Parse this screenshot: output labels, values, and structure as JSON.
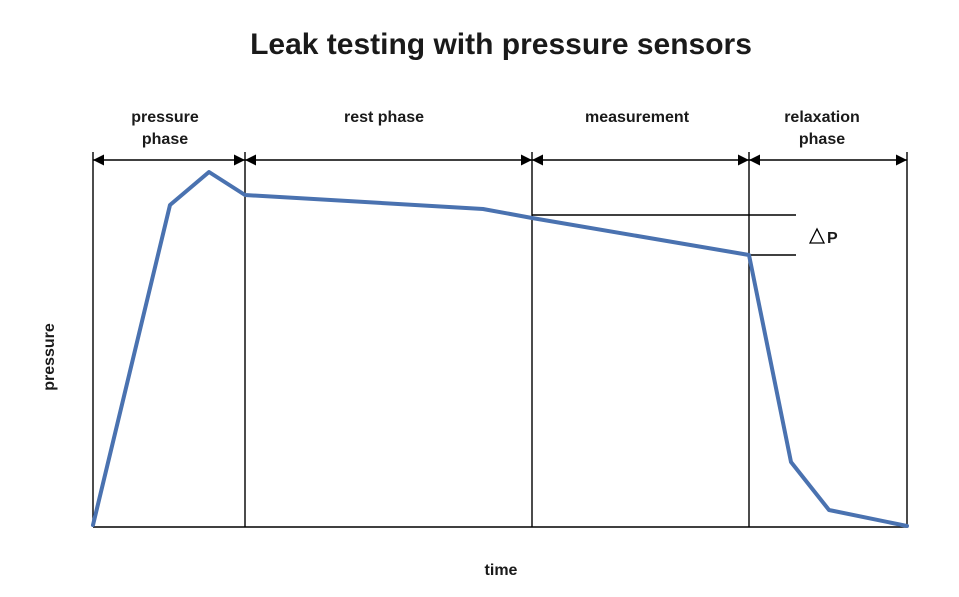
{
  "title": "Leak testing with pressure sensors",
  "phases": [
    {
      "line1": "pressure",
      "line2": "phase"
    },
    {
      "line1": "rest phase",
      "line2": ""
    },
    {
      "line1": "measurement",
      "line2": ""
    },
    {
      "line1": "relaxation",
      "line2": "phase"
    }
  ],
  "delta_label": "P",
  "axis": {
    "x": "time",
    "y": "pressure"
  },
  "colors": {
    "curve": "#4a72b0",
    "frame": "#000000",
    "text": "#1a1a1a"
  }
}
